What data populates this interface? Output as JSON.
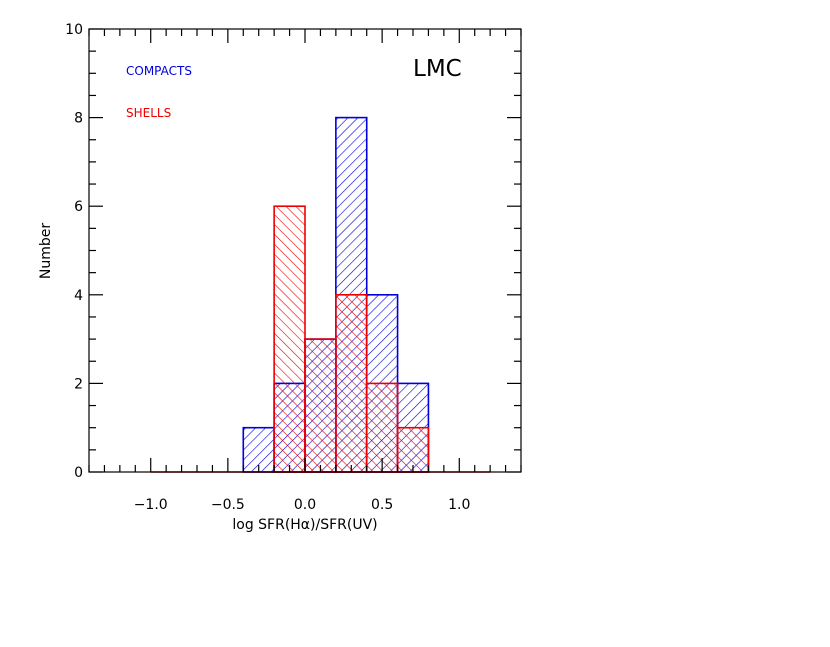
{
  "chart_data": {
    "type": "histogram",
    "title": "",
    "xlabel": "log SFR(Hα)/SFR(UV)",
    "ylabel": "Number",
    "annotation": "LMC",
    "xlim": [
      -1.4,
      1.4
    ],
    "ylim": [
      0,
      10
    ],
    "x_ticks": [
      -1.0,
      -0.5,
      0.0,
      0.5,
      1.0
    ],
    "x_tick_labels": [
      "−1.0",
      "−0.5",
      "0.0",
      "0.5",
      "1.0"
    ],
    "y_ticks": [
      0,
      2,
      4,
      6,
      8,
      10
    ],
    "y_tick_labels": [
      "0",
      "2",
      "4",
      "6",
      "8",
      "10"
    ],
    "grid": false,
    "legend_placement": "top-left",
    "bin_edges": [
      -0.4,
      -0.2,
      0.0,
      0.2,
      0.4,
      0.6,
      0.8
    ],
    "series": [
      {
        "name": "COMPACTS",
        "color": "#0000dd",
        "hatch": "forward-diagonal",
        "counts": [
          1,
          2,
          3,
          8,
          4,
          2
        ]
      },
      {
        "name": "SHELLS",
        "color": "#ee0000",
        "hatch": "back-diagonal",
        "counts": [
          0,
          6,
          3,
          4,
          2,
          1
        ]
      }
    ],
    "baseline_color": "#ee0000",
    "baseline_range": [
      -1.0,
      1.2
    ]
  }
}
